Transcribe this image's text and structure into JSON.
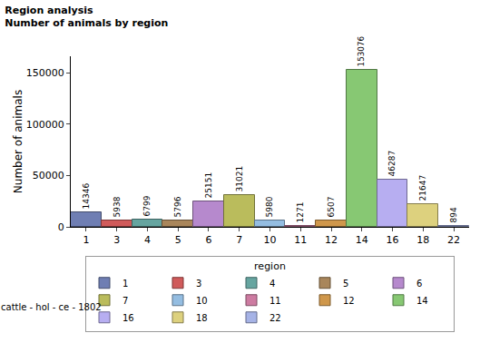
{
  "chart_data": {
    "type": "bar",
    "title": "Region analysis",
    "subtitle": "Number of animals by region",
    "y_label": "Number of animals",
    "legend_title": "region",
    "footnote": "cattle - hol - ce - 1802",
    "categories": [
      "1",
      "3",
      "4",
      "5",
      "6",
      "7",
      "10",
      "11",
      "12",
      "14",
      "16",
      "18",
      "22"
    ],
    "values": [
      14346,
      5938,
      6799,
      5796,
      25151,
      31021,
      5980,
      1271,
      6507,
      153076,
      46287,
      21647,
      894
    ],
    "colors": [
      "#6f7eb3",
      "#d05b5b",
      "#66a5a0",
      "#a9865b",
      "#b689cd",
      "#babc5c",
      "#94bde1",
      "#cd7ba1",
      "#cf974b",
      "#87c873",
      "#b7aef1",
      "#ddd17e",
      "#a6b3e6"
    ],
    "ylim": [
      0,
      166000
    ],
    "yticks": [
      0,
      50000,
      100000,
      150000
    ],
    "grid": false,
    "legend": "bottom",
    "data_labels": true
  }
}
